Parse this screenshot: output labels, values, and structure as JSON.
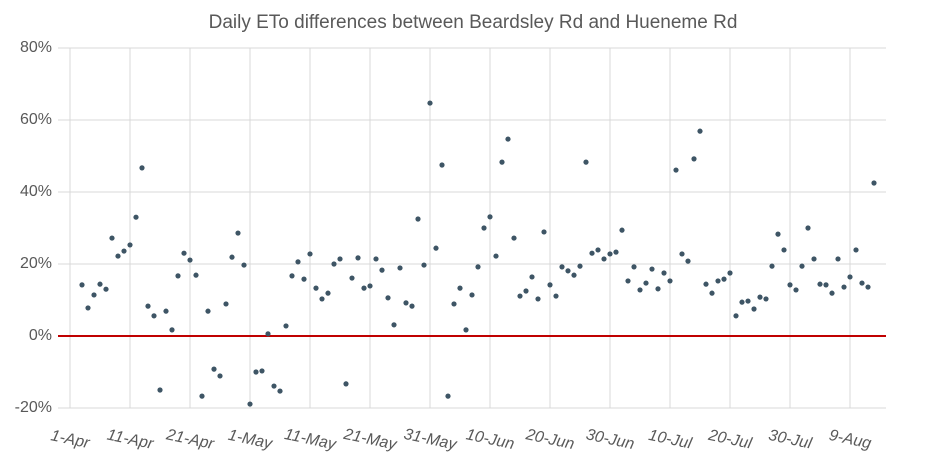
{
  "chart_data": {
    "type": "scatter",
    "title": "Daily ETo differences between Beardsley Rd and Hueneme Rd",
    "x": [
      2,
      3,
      4,
      5,
      6,
      7,
      8,
      9,
      10,
      11,
      12,
      13,
      14,
      15,
      16,
      17,
      18,
      19,
      20,
      21,
      22,
      23,
      24,
      25,
      26,
      27,
      28,
      29,
      30,
      31,
      32,
      33,
      34,
      35,
      36,
      37,
      38,
      39,
      40,
      41,
      42,
      43,
      44,
      45,
      46,
      47,
      48,
      49,
      50,
      51,
      52,
      53,
      54,
      55,
      56,
      57,
      58,
      59,
      60,
      61,
      62,
      63,
      64,
      65,
      66,
      67,
      68,
      69,
      70,
      71,
      72,
      73,
      74,
      75,
      76,
      77,
      78,
      79,
      80,
      81,
      82,
      83,
      84,
      85,
      86,
      87,
      88,
      89,
      90,
      91,
      92,
      93,
      94,
      95,
      96,
      97,
      98,
      99,
      100,
      101,
      102,
      103,
      104,
      105,
      106,
      107,
      108,
      109,
      110,
      111,
      112,
      113,
      114,
      115,
      116,
      117,
      118,
      119,
      120,
      121,
      122,
      123,
      124,
      125,
      126,
      127,
      128,
      129,
      130,
      131,
      132,
      133,
      134
    ],
    "values": [
      14.2,
      7.8,
      11.4,
      14.4,
      13,
      27.2,
      22.2,
      23.6,
      25.3,
      33,
      46.7,
      8.3,
      5.6,
      -15,
      6.9,
      1.7,
      16.7,
      23,
      21.1,
      16.9,
      -16.7,
      6.9,
      -9.2,
      -11.1,
      8.9,
      21.9,
      28.6,
      19.7,
      -18.9,
      -10,
      -9.7,
      0.6,
      -13.9,
      -15.3,
      2.8,
      16.7,
      20.6,
      15.8,
      22.8,
      13.3,
      10.3,
      11.9,
      20,
      21.4,
      -13.3,
      16.1,
      21.7,
      13.3,
      13.9,
      21.4,
      18.3,
      10.6,
      3.1,
      18.9,
      9.2,
      8.3,
      32.5,
      19.7,
      64.7,
      24.4,
      47.5,
      -16.7,
      8.9,
      13.3,
      1.7,
      11.4,
      19.2,
      30,
      33.1,
      22.2,
      48.3,
      54.7,
      27.2,
      11.1,
      12.5,
      16.4,
      10.3,
      28.9,
      14.2,
      11.1,
      19.2,
      18.1,
      16.9,
      19.4,
      48.3,
      23,
      23.9,
      21.4,
      22.8,
      23.3,
      29.4,
      15.3,
      19.2,
      12.8,
      14.7,
      18.6,
      13.1,
      17.5,
      15.3,
      46.1,
      22.8,
      20.8,
      49.2,
      56.9,
      14.4,
      11.9,
      15.3,
      15.8,
      17.5,
      5.6,
      9.4,
      9.7,
      7.5,
      10.8,
      10.3,
      19.4,
      28.3,
      23.9,
      14.2,
      12.8,
      19.4,
      30,
      21.4,
      14.4,
      14.2,
      11.9,
      21.4,
      13.6,
      16.4,
      23.9,
      14.7,
      13.6,
      42.5
    ],
    "color": "#3e5565",
    "xlim": [
      -2,
      136
    ],
    "xticks": [
      {
        "value": 0,
        "label": "1-Apr"
      },
      {
        "value": 10,
        "label": "11-Apr"
      },
      {
        "value": 20,
        "label": "21-Apr"
      },
      {
        "value": 30,
        "label": "1-May"
      },
      {
        "value": 40,
        "label": "11-May"
      },
      {
        "value": 50,
        "label": "21-May"
      },
      {
        "value": 60,
        "label": "31-May"
      },
      {
        "value": 70,
        "label": "10-Jun"
      },
      {
        "value": 80,
        "label": "20-Jun"
      },
      {
        "value": 90,
        "label": "30-Jun"
      },
      {
        "value": 100,
        "label": "10-Jul"
      },
      {
        "value": 110,
        "label": "20-Jul"
      },
      {
        "value": 120,
        "label": "30-Jul"
      },
      {
        "value": 130,
        "label": "9-Aug"
      }
    ],
    "ylim": [
      -20,
      80
    ],
    "yticks": [
      {
        "value": -20,
        "label": "-20%"
      },
      {
        "value": 0,
        "label": "0%"
      },
      {
        "value": 20,
        "label": "20%"
      },
      {
        "value": 40,
        "label": "40%"
      },
      {
        "value": 60,
        "label": "60%"
      },
      {
        "value": 80,
        "label": "80%"
      }
    ],
    "grid": true,
    "hline": 0,
    "hline_color": "#c00000"
  }
}
